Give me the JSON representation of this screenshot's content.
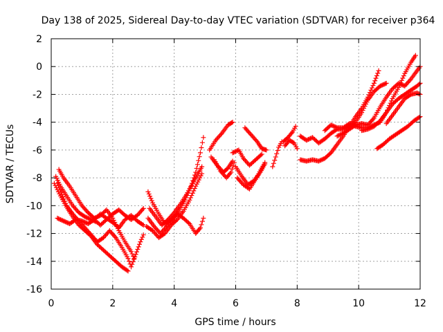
{
  "chart_data": {
    "type": "scatter",
    "title": "Day 138 of 2025, Sidereal Day-to-day VTEC variation (SDTVAR) for receiver p364",
    "xlabel": "GPS time / hours",
    "ylabel": "SDTVAR / TECUs",
    "xlim": [
      0,
      12
    ],
    "ylim": [
      -16,
      2
    ],
    "xticks": [
      "0",
      "2",
      "4",
      "6",
      "8",
      "10",
      "12"
    ],
    "yticks": [
      "2",
      "0",
      "-2",
      "-4",
      "-6",
      "-8",
      "-10",
      "-12",
      "-14",
      "-16"
    ],
    "grid": true,
    "legend": "none",
    "marker": "plus",
    "color": "#ff0000",
    "series": [
      {
        "values": [
          [
            0.15,
            -7.9
          ],
          [
            0.3,
            -8.6
          ],
          [
            0.5,
            -9.3
          ],
          [
            0.7,
            -10.0
          ],
          [
            0.9,
            -10.5
          ],
          [
            1.1,
            -10.8
          ],
          [
            1.3,
            -11.0
          ],
          [
            1.5,
            -11.2
          ],
          [
            1.6,
            -11.4
          ],
          [
            1.8,
            -11.0
          ],
          [
            2.0,
            -10.6
          ],
          [
            2.2,
            -10.3
          ],
          [
            2.4,
            -10.7
          ],
          [
            2.6,
            -11.0
          ],
          [
            2.8,
            -10.7
          ],
          [
            3.0,
            -10.2
          ]
        ]
      },
      {
        "values": [
          [
            0.2,
            -8.4
          ],
          [
            0.35,
            -9.2
          ],
          [
            0.5,
            -10.0
          ],
          [
            0.7,
            -10.6
          ],
          [
            0.9,
            -11.1
          ],
          [
            1.1,
            -11.6
          ],
          [
            1.3,
            -12.1
          ],
          [
            1.5,
            -12.6
          ],
          [
            1.7,
            -12.3
          ],
          [
            1.9,
            -11.8
          ],
          [
            2.1,
            -12.3
          ],
          [
            2.3,
            -13.0
          ],
          [
            2.5,
            -13.8
          ],
          [
            2.6,
            -14.4
          ],
          [
            2.75,
            -13.5
          ],
          [
            2.9,
            -12.6
          ],
          [
            3.0,
            -12.1
          ]
        ]
      },
      {
        "values": [
          [
            0.2,
            -10.9
          ],
          [
            0.4,
            -11.1
          ],
          [
            0.6,
            -11.3
          ],
          [
            0.8,
            -11.0
          ],
          [
            1.0,
            -11.1
          ],
          [
            1.2,
            -11.3
          ],
          [
            1.4,
            -11.0
          ],
          [
            1.6,
            -10.6
          ],
          [
            1.8,
            -10.9
          ],
          [
            2.0,
            -11.2
          ],
          [
            2.2,
            -11.6
          ],
          [
            2.4,
            -11.0
          ],
          [
            2.6,
            -10.7
          ],
          [
            2.8,
            -11.1
          ],
          [
            3.0,
            -11.4
          ]
        ]
      },
      {
        "values": [
          [
            0.25,
            -7.4
          ],
          [
            0.4,
            -8.0
          ],
          [
            0.6,
            -8.6
          ],
          [
            0.8,
            -9.3
          ],
          [
            1.0,
            -10.0
          ],
          [
            1.2,
            -10.5
          ],
          [
            1.4,
            -10.9
          ],
          [
            1.6,
            -10.7
          ],
          [
            1.8,
            -10.3
          ],
          [
            2.0,
            -10.9
          ],
          [
            2.2,
            -11.8
          ],
          [
            2.4,
            -12.6
          ],
          [
            2.6,
            -13.3
          ],
          [
            2.7,
            -13.8
          ]
        ]
      },
      {
        "values": [
          [
            0.1,
            -8.4
          ],
          [
            0.3,
            -9.3
          ],
          [
            0.5,
            -10.1
          ],
          [
            0.7,
            -10.8
          ],
          [
            0.9,
            -11.4
          ],
          [
            1.1,
            -11.8
          ],
          [
            1.3,
            -12.2
          ],
          [
            1.5,
            -12.8
          ],
          [
            1.7,
            -13.2
          ],
          [
            1.9,
            -13.6
          ],
          [
            2.1,
            -14.0
          ],
          [
            2.3,
            -14.4
          ],
          [
            2.5,
            -14.7
          ]
        ]
      },
      {
        "values": [
          [
            3.15,
            -9.0
          ],
          [
            3.3,
            -9.8
          ],
          [
            3.5,
            -10.6
          ],
          [
            3.7,
            -11.3
          ],
          [
            3.9,
            -11.0
          ],
          [
            4.1,
            -10.6
          ],
          [
            4.3,
            -10.9
          ],
          [
            4.5,
            -11.3
          ],
          [
            4.7,
            -12.0
          ],
          [
            4.85,
            -11.6
          ],
          [
            4.95,
            -10.9
          ]
        ]
      },
      {
        "values": [
          [
            3.2,
            -10.2
          ],
          [
            3.4,
            -10.8
          ],
          [
            3.6,
            -11.4
          ],
          [
            3.8,
            -11.0
          ],
          [
            4.0,
            -10.5
          ],
          [
            4.2,
            -9.9
          ],
          [
            4.4,
            -9.2
          ],
          [
            4.6,
            -8.4
          ],
          [
            4.75,
            -7.8
          ],
          [
            4.9,
            -7.2
          ]
        ]
      },
      {
        "values": [
          [
            3.15,
            -10.9
          ],
          [
            3.35,
            -11.5
          ],
          [
            3.55,
            -12.0
          ],
          [
            3.75,
            -11.5
          ],
          [
            3.95,
            -11.0
          ],
          [
            4.15,
            -10.4
          ],
          [
            4.35,
            -9.6
          ],
          [
            4.55,
            -8.6
          ],
          [
            4.7,
            -7.6
          ],
          [
            4.85,
            -6.2
          ],
          [
            4.95,
            -5.1
          ]
        ]
      },
      {
        "values": [
          [
            3.1,
            -11.5
          ],
          [
            3.3,
            -11.8
          ],
          [
            3.5,
            -12.3
          ],
          [
            3.7,
            -12.0
          ],
          [
            3.9,
            -11.4
          ],
          [
            4.1,
            -11.0
          ],
          [
            4.3,
            -10.4
          ],
          [
            4.5,
            -9.6
          ],
          [
            4.7,
            -8.6
          ],
          [
            4.9,
            -7.7
          ]
        ]
      },
      {
        "values": [
          [
            5.15,
            -6.0
          ],
          [
            5.35,
            -5.3
          ],
          [
            5.55,
            -4.8
          ],
          [
            5.75,
            -4.2
          ],
          [
            5.9,
            -4.0
          ]
        ]
      },
      {
        "values": [
          [
            5.2,
            -6.5
          ],
          [
            5.4,
            -7.1
          ],
          [
            5.6,
            -7.6
          ],
          [
            5.75,
            -7.3
          ],
          [
            5.9,
            -6.8
          ]
        ]
      },
      {
        "values": [
          [
            5.3,
            -6.7
          ],
          [
            5.5,
            -7.5
          ],
          [
            5.7,
            -8.0
          ],
          [
            5.85,
            -7.6
          ],
          [
            5.95,
            -6.9
          ]
        ]
      },
      {
        "values": [
          [
            5.9,
            -6.2
          ],
          [
            6.1,
            -6.0
          ],
          [
            6.25,
            -6.6
          ],
          [
            6.45,
            -7.1
          ],
          [
            6.65,
            -6.7
          ],
          [
            6.85,
            -6.3
          ]
        ]
      },
      {
        "values": [
          [
            6.0,
            -7.2
          ],
          [
            6.2,
            -7.9
          ],
          [
            6.4,
            -8.5
          ],
          [
            6.6,
            -8.2
          ],
          [
            6.8,
            -7.6
          ],
          [
            6.95,
            -7.0
          ]
        ]
      },
      {
        "values": [
          [
            6.05,
            -8.0
          ],
          [
            6.25,
            -8.5
          ],
          [
            6.45,
            -8.8
          ],
          [
            6.65,
            -8.1
          ],
          [
            6.85,
            -7.3
          ],
          [
            6.95,
            -6.9
          ]
        ]
      },
      {
        "values": [
          [
            6.3,
            -4.4
          ],
          [
            6.5,
            -4.9
          ],
          [
            6.7,
            -5.4
          ],
          [
            6.85,
            -5.9
          ],
          [
            7.0,
            -6.0
          ]
        ]
      },
      {
        "values": [
          [
            7.2,
            -7.2
          ],
          [
            7.3,
            -6.5
          ],
          [
            7.4,
            -5.8
          ],
          [
            7.5,
            -5.4
          ]
        ]
      },
      {
        "values": [
          [
            7.55,
            -5.4
          ],
          [
            7.7,
            -5.1
          ],
          [
            7.85,
            -4.7
          ],
          [
            7.95,
            -4.3
          ]
        ]
      },
      {
        "values": [
          [
            7.6,
            -5.7
          ],
          [
            7.75,
            -5.3
          ],
          [
            7.9,
            -5.5
          ],
          [
            8.0,
            -5.9
          ]
        ]
      },
      {
        "values": [
          [
            8.1,
            -6.7
          ],
          [
            8.3,
            -6.8
          ],
          [
            8.5,
            -6.7
          ],
          [
            8.7,
            -6.8
          ],
          [
            8.9,
            -6.6
          ],
          [
            9.1,
            -6.2
          ],
          [
            9.3,
            -5.6
          ],
          [
            9.5,
            -5.0
          ],
          [
            9.7,
            -4.3
          ],
          [
            9.9,
            -3.6
          ],
          [
            10.1,
            -3.0
          ],
          [
            10.3,
            -2.2
          ],
          [
            10.5,
            -1.2
          ],
          [
            10.65,
            -0.3
          ]
        ]
      },
      {
        "values": [
          [
            8.1,
            -5.0
          ],
          [
            8.3,
            -5.3
          ],
          [
            8.5,
            -5.1
          ],
          [
            8.7,
            -5.5
          ],
          [
            8.9,
            -5.2
          ],
          [
            9.1,
            -4.8
          ],
          [
            9.3,
            -4.5
          ],
          [
            9.5,
            -4.5
          ],
          [
            9.7,
            -4.3
          ],
          [
            9.9,
            -4.0
          ],
          [
            10.1,
            -3.3
          ],
          [
            10.3,
            -2.4
          ],
          [
            10.5,
            -1.8
          ],
          [
            10.7,
            -1.4
          ],
          [
            10.9,
            -1.2
          ]
        ]
      },
      {
        "values": [
          [
            8.9,
            -4.6
          ],
          [
            9.1,
            -4.2
          ],
          [
            9.3,
            -4.4
          ],
          [
            9.5,
            -4.4
          ],
          [
            9.7,
            -4.1
          ],
          [
            9.9,
            -4.3
          ],
          [
            10.1,
            -4.4
          ],
          [
            10.3,
            -4.4
          ],
          [
            10.5,
            -4.2
          ],
          [
            10.7,
            -4.0
          ],
          [
            10.9,
            -3.3
          ],
          [
            11.1,
            -2.3
          ],
          [
            11.3,
            -1.5
          ],
          [
            11.5,
            -0.5
          ],
          [
            11.7,
            0.3
          ],
          [
            11.85,
            0.8
          ]
        ]
      },
      {
        "values": [
          [
            9.3,
            -5.0
          ],
          [
            9.5,
            -4.8
          ],
          [
            9.7,
            -4.5
          ],
          [
            9.9,
            -4.2
          ],
          [
            10.1,
            -4.1
          ],
          [
            10.3,
            -4.2
          ],
          [
            10.5,
            -3.7
          ],
          [
            10.7,
            -2.9
          ],
          [
            10.9,
            -2.2
          ],
          [
            11.1,
            -1.6
          ],
          [
            11.3,
            -1.2
          ],
          [
            11.5,
            -1.4
          ],
          [
            11.7,
            -0.9
          ],
          [
            11.9,
            -0.3
          ],
          [
            12.0,
            0.0
          ]
        ]
      },
      {
        "values": [
          [
            10.6,
            -5.9
          ],
          [
            10.8,
            -5.6
          ],
          [
            11.0,
            -5.2
          ],
          [
            11.2,
            -4.9
          ],
          [
            11.4,
            -4.6
          ],
          [
            11.6,
            -4.3
          ],
          [
            11.8,
            -3.9
          ],
          [
            12.0,
            -3.6
          ]
        ]
      },
      {
        "values": [
          [
            10.1,
            -4.6
          ],
          [
            10.3,
            -4.5
          ],
          [
            10.5,
            -4.3
          ],
          [
            10.7,
            -3.9
          ],
          [
            10.9,
            -3.3
          ],
          [
            11.1,
            -2.7
          ],
          [
            11.3,
            -2.3
          ],
          [
            11.5,
            -2.0
          ],
          [
            11.7,
            -1.7
          ],
          [
            11.9,
            -1.4
          ],
          [
            12.0,
            -1.2
          ]
        ]
      },
      {
        "values": [
          [
            10.9,
            -4.1
          ],
          [
            11.1,
            -3.5
          ],
          [
            11.3,
            -2.9
          ],
          [
            11.5,
            -2.3
          ],
          [
            11.7,
            -2.0
          ],
          [
            11.9,
            -1.9
          ],
          [
            12.0,
            -2.0
          ]
        ]
      }
    ]
  }
}
